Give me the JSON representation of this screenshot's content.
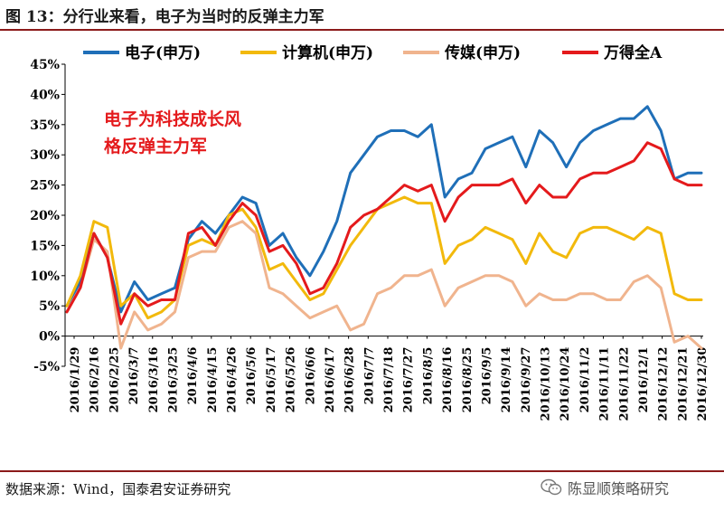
{
  "figure": {
    "title": "图 13：分行业来看，电子为当时的反弹主力军",
    "source": "数据来源：Wind，国泰君安证券研究",
    "brand": "陈显顺策略研究"
  },
  "chart_data": {
    "type": "line",
    "ylim": [
      -5,
      45
    ],
    "y_ticks": [
      "-5%",
      "0%",
      "5%",
      "10%",
      "15%",
      "20%",
      "25%",
      "30%",
      "35%",
      "40%",
      "45%"
    ],
    "x_tick_labels": [
      "2016/1/29",
      "2016/2/16",
      "2016/2/25",
      "2016/3/7",
      "2016/3/16",
      "2016/3/25",
      "2016/4/6",
      "2016/4/15",
      "2016/4/26",
      "2016/5/6",
      "2016/5/17",
      "2016/5/26",
      "2016/6/6",
      "2016/6/17",
      "2016/6/28",
      "2016/7/7",
      "2016/7/18",
      "2016/7/27",
      "2016/8/5",
      "2016/8/16",
      "2016/8/25",
      "2016/9/5",
      "2016/9/14",
      "2016/9/27",
      "2016/10/13",
      "2016/10/24",
      "2016/11/2",
      "2016/11/11",
      "2016/11/22",
      "2016/12/1",
      "2016/12/12",
      "2016/12/21",
      "2016/12/30"
    ],
    "annotation": [
      "电子为科技成长风",
      "格反弹主力军"
    ],
    "legend_position": "top",
    "series": [
      {
        "name": "电子(申万)",
        "color": "#1f6fb8",
        "values": [
          5,
          9,
          17,
          13,
          4,
          9,
          6,
          7,
          8,
          16,
          19,
          17,
          20,
          23,
          22,
          15,
          17,
          13,
          10,
          14,
          19,
          27,
          30,
          33,
          34,
          34,
          33,
          35,
          23,
          26,
          27,
          31,
          32,
          33,
          28,
          34,
          32,
          28,
          32,
          34,
          35,
          36,
          36,
          38,
          34,
          26,
          27,
          27
        ]
      },
      {
        "name": "计算机(申万)",
        "color": "#f2b90c",
        "values": [
          5,
          10,
          19,
          18,
          5,
          7,
          3,
          4,
          6,
          15,
          16,
          15,
          20,
          21,
          18,
          11,
          12,
          9,
          6,
          7,
          11,
          15,
          18,
          21,
          22,
          23,
          22,
          22,
          12,
          15,
          16,
          18,
          17,
          16,
          12,
          17,
          14,
          13,
          17,
          18,
          18,
          17,
          16,
          18,
          17,
          7,
          6,
          6
        ]
      },
      {
        "name": "传媒(申万)",
        "color": "#f0b48e",
        "values": [
          4,
          8,
          16,
          14,
          -2,
          4,
          1,
          2,
          4,
          13,
          14,
          14,
          18,
          19,
          17,
          8,
          7,
          5,
          3,
          4,
          5,
          1,
          2,
          7,
          8,
          10,
          10,
          11,
          5,
          8,
          9,
          10,
          10,
          9,
          5,
          7,
          6,
          6,
          7,
          7,
          6,
          6,
          9,
          10,
          8,
          -1,
          0,
          -2
        ]
      },
      {
        "name": "万得全A",
        "color": "#e41a1c",
        "values": [
          4,
          8,
          17,
          13,
          2,
          7,
          5,
          6,
          6,
          17,
          18,
          15,
          19,
          22,
          20,
          14,
          15,
          12,
          7,
          8,
          12,
          18,
          20,
          21,
          23,
          25,
          24,
          25,
          19,
          23,
          25,
          25,
          25,
          26,
          22,
          25,
          23,
          23,
          26,
          27,
          27,
          28,
          29,
          32,
          31,
          26,
          25,
          25
        ]
      }
    ]
  }
}
